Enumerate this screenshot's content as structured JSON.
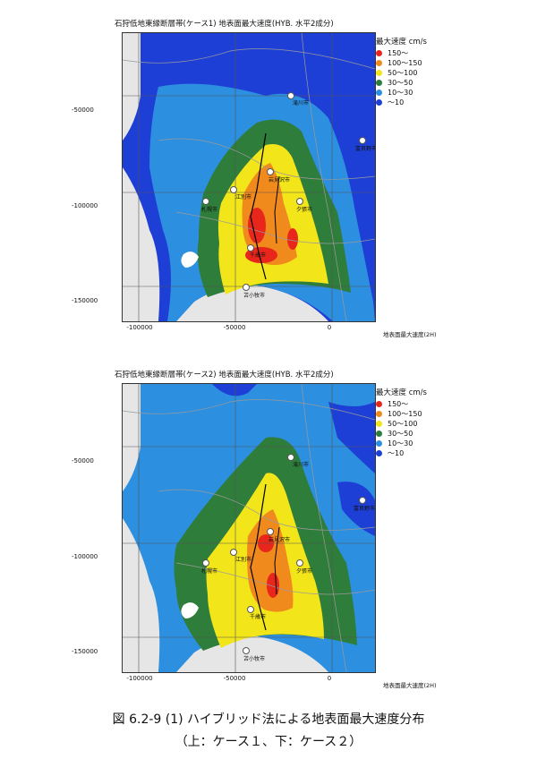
{
  "panels": [
    {
      "title": "石狩低地東縁断層帯(ケース1)  地表面最大速度(HYB. 水平2成分)",
      "note": "地表面最大速度(2H)"
    },
    {
      "title": "石狩低地東縁断層帯(ケース2)  地表面最大速度(HYB. 水平2成分)",
      "note": "地表面最大速度(2H)"
    }
  ],
  "axis": {
    "y_ticks": [
      "-50000",
      "-100000",
      "-150000"
    ],
    "x_ticks": [
      "-100000",
      "-50000",
      "0"
    ]
  },
  "legend": {
    "title": "最大速度 cm/s",
    "items": [
      {
        "label": "150～",
        "color": "#e8261c"
      },
      {
        "label": "100～150",
        "color": "#f18a1d"
      },
      {
        "label": "50～100",
        "color": "#f2e51a"
      },
      {
        "label": "30～50",
        "color": "#2f7d3a"
      },
      {
        "label": "10～30",
        "color": "#2c8fe0"
      },
      {
        "label": "～10",
        "color": "#1e3fd6"
      }
    ]
  },
  "cities": [
    "滝川市",
    "富良野市",
    "岩見沢市",
    "江別市",
    "札幌市",
    "夕張市",
    "千歳市",
    "苫小牧市"
  ],
  "caption": {
    "line1": "図 6.2-9 (1)   ハイブリッド法による地表面最大速度分布",
    "line2": "（上：ケース１、下：ケース２）"
  }
}
